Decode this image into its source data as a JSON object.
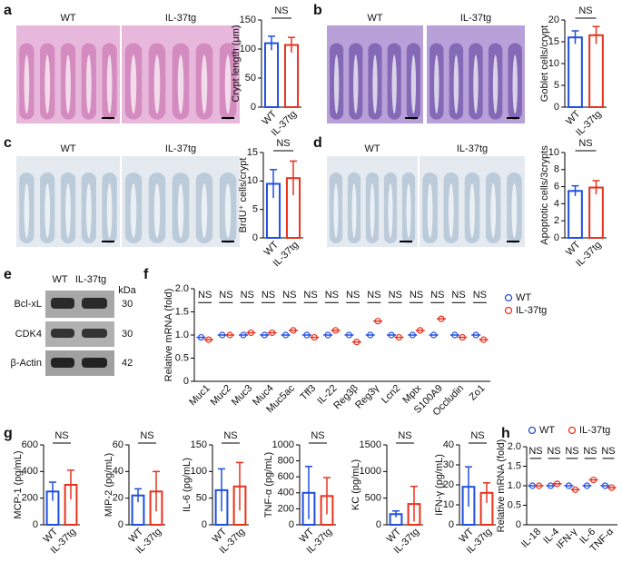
{
  "chart_data": [
    {
      "panel": "a",
      "type": "bar",
      "images": [
        "WT",
        "IL-37tg"
      ],
      "ylabel": "Crypt length (μm)",
      "categories": [
        "WT",
        "IL-37tg"
      ],
      "values": [
        110,
        107
      ],
      "errors": [
        12,
        13
      ],
      "colors": [
        "#1f4fe0",
        "#e8321c"
      ],
      "ylim": [
        0,
        150
      ],
      "yticks": [
        0,
        50,
        100,
        150
      ],
      "annotation": "NS"
    },
    {
      "panel": "b",
      "type": "bar",
      "images": [
        "WT",
        "IL-37tg"
      ],
      "ylabel": "Goblet cells/crypt",
      "categories": [
        "WT",
        "IL-37tg"
      ],
      "values": [
        16,
        16.5
      ],
      "errors": [
        1.5,
        2
      ],
      "colors": [
        "#1f4fe0",
        "#e8321c"
      ],
      "ylim": [
        0,
        20
      ],
      "yticks": [
        0,
        5,
        10,
        15,
        20
      ],
      "annotation": "NS"
    },
    {
      "panel": "c",
      "type": "bar",
      "images": [
        "WT",
        "IL-37tg"
      ],
      "ylabel": "BrdU⁺ cells/crypt",
      "categories": [
        "WT",
        "IL-37tg"
      ],
      "values": [
        9.5,
        10.5
      ],
      "errors": [
        2.5,
        3
      ],
      "colors": [
        "#1f4fe0",
        "#e8321c"
      ],
      "ylim": [
        0,
        15
      ],
      "yticks": [
        0,
        5,
        10,
        15
      ],
      "annotation": "NS"
    },
    {
      "panel": "d",
      "type": "bar",
      "images": [
        "WT",
        "IL-37tg"
      ],
      "ylabel": "Apoptotic cells/3crypts",
      "categories": [
        "WT",
        "IL-37tg"
      ],
      "values": [
        5.5,
        5.9
      ],
      "errors": [
        0.6,
        0.8
      ],
      "colors": [
        "#1f4fe0",
        "#e8321c"
      ],
      "ylim": [
        0,
        10
      ],
      "yticks": [
        0,
        2,
        4,
        6,
        8,
        10
      ],
      "annotation": "NS"
    },
    {
      "panel": "f",
      "type": "dot",
      "ylabel": "Relative mRNA (fold)",
      "categories": [
        "Muc1",
        "Muc2",
        "Muc3",
        "Muc4",
        "Muc5ac",
        "Tff3",
        "IL-22",
        "Reg3β",
        "Reg3γ",
        "Lcn2",
        "Mptx",
        "S100A9",
        "Occludin",
        "Zo1"
      ],
      "series": [
        {
          "name": "WT",
          "color": "#1f4fe0",
          "values": [
            0.95,
            1.0,
            1.0,
            1.0,
            1.0,
            1.0,
            1.0,
            1.0,
            1.0,
            1.0,
            1.0,
            1.0,
            1.0,
            1.0
          ]
        },
        {
          "name": "IL-37tg",
          "color": "#e8321c",
          "values": [
            0.9,
            1.0,
            1.05,
            1.05,
            1.1,
            0.95,
            1.1,
            0.85,
            1.3,
            0.95,
            1.1,
            1.35,
            0.95,
            0.9
          ]
        }
      ],
      "ylim": [
        0,
        2
      ],
      "yticks": [
        0,
        0.5,
        {
          "value": 1,
          "label": "1.0"
        },
        1.5,
        {
          "value": 2,
          "label": "2.0"
        }
      ],
      "annotation": "NS"
    },
    {
      "panel": "g",
      "type": "bar",
      "ylabel": "MCP-1 (pg/mL)",
      "categories": [
        "WT",
        "IL-37tg"
      ],
      "values": [
        250,
        300
      ],
      "errors": [
        70,
        110
      ],
      "colors": [
        "#1f4fe0",
        "#e8321c"
      ],
      "ylim": [
        0,
        600
      ],
      "yticks": [
        0,
        200,
        400,
        600
      ],
      "annotation": "NS"
    },
    {
      "type": "bar",
      "ylabel": "MIP-2 (pg/mL)",
      "categories": [
        "WT",
        "IL-37tg"
      ],
      "values": [
        22,
        25
      ],
      "errors": [
        5,
        15
      ],
      "colors": [
        "#1f4fe0",
        "#e8321c"
      ],
      "ylim": [
        0,
        60
      ],
      "yticks": [
        0,
        20,
        40,
        60
      ],
      "annotation": "NS"
    },
    {
      "type": "bar",
      "ylabel": "IL-6 (pg/mL)",
      "categories": [
        "WT",
        "IL-37tg"
      ],
      "values": [
        65,
        72
      ],
      "errors": [
        40,
        45
      ],
      "colors": [
        "#1f4fe0",
        "#e8321c"
      ],
      "ylim": [
        0,
        150
      ],
      "yticks": [
        0,
        50,
        100,
        150
      ],
      "annotation": "NS"
    },
    {
      "type": "bar",
      "ylabel": "TNF-α (pg/mL)",
      "categories": [
        "WT",
        "IL-37tg"
      ],
      "values": [
        400,
        360
      ],
      "errors": [
        330,
        230
      ],
      "colors": [
        "#1f4fe0",
        "#e8321c"
      ],
      "ylim": [
        0,
        1000
      ],
      "yticks": [
        0,
        200,
        400,
        600,
        800,
        1000
      ],
      "annotation": "NS"
    },
    {
      "type": "bar",
      "ylabel": "KC (pg/mL)",
      "categories": [
        "WT",
        "IL-37tg"
      ],
      "values": [
        200,
        390
      ],
      "errors": [
        60,
        330
      ],
      "colors": [
        "#1f4fe0",
        "#e8321c"
      ],
      "ylim": [
        0,
        1500
      ],
      "yticks": [
        0,
        500,
        1000,
        1500
      ],
      "annotation": "NS"
    },
    {
      "type": "bar",
      "ylabel": "IFN-γ (pg/mL)",
      "categories": [
        "WT",
        "IL-37tg"
      ],
      "values": [
        19,
        16
      ],
      "errors": [
        10,
        5
      ],
      "colors": [
        "#1f4fe0",
        "#e8321c"
      ],
      "ylim": [
        0,
        40
      ],
      "yticks": [
        0,
        10,
        20,
        30,
        40
      ],
      "annotation": "NS"
    },
    {
      "panel": "h",
      "type": "dot",
      "ylabel": "Relative mRNA (fold)",
      "categories": [
        "IL-18",
        "IL-4",
        "IFN-γ",
        "IL-6",
        "TNF-α"
      ],
      "series": [
        {
          "name": "WT",
          "color": "#1f4fe0",
          "values": [
            1.0,
            1.0,
            1.0,
            1.0,
            1.0
          ]
        },
        {
          "name": "IL-37tg",
          "color": "#e8321c",
          "values": [
            1.0,
            1.05,
            0.9,
            1.15,
            0.95
          ]
        }
      ],
      "ylim": [
        0,
        2
      ],
      "yticks": [
        0,
        0.5,
        {
          "value": 1,
          "label": "1.0"
        },
        1.5,
        {
          "value": 2,
          "label": "2.0"
        }
      ],
      "annotation": "NS"
    }
  ],
  "blot": {
    "panel": "e",
    "lanes": [
      "WT",
      "IL-37tg"
    ],
    "unit": "kDa",
    "rows": [
      {
        "name": "Bcl-xL",
        "kda": "30"
      },
      {
        "name": "CDK4",
        "kda": "30"
      },
      {
        "name": "β-Actin",
        "kda": "42"
      }
    ]
  }
}
